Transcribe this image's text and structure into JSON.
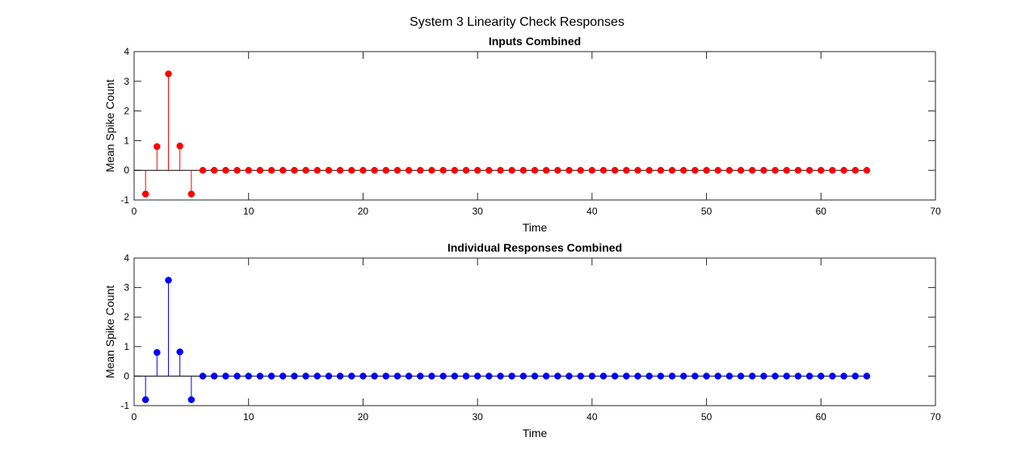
{
  "figure": {
    "suptitle": "System 3 Linearity Check Responses"
  },
  "chart_data": [
    {
      "type": "stem",
      "title": "Inputs Combined",
      "xlabel": "Time",
      "ylabel": "Mean Spike Count",
      "xlim": [
        0,
        70
      ],
      "ylim": [
        -1,
        4
      ],
      "xticks": [
        0,
        10,
        20,
        30,
        40,
        50,
        60,
        70
      ],
      "yticks": [
        -1,
        0,
        1,
        2,
        3,
        4
      ],
      "color": "#ff0000",
      "x": [
        1,
        2,
        3,
        4,
        5,
        6,
        7,
        8,
        9,
        10,
        11,
        12,
        13,
        14,
        15,
        16,
        17,
        18,
        19,
        20,
        21,
        22,
        23,
        24,
        25,
        26,
        27,
        28,
        29,
        30,
        31,
        32,
        33,
        34,
        35,
        36,
        37,
        38,
        39,
        40,
        41,
        42,
        43,
        44,
        45,
        46,
        47,
        48,
        49,
        50,
        51,
        52,
        53,
        54,
        55,
        56,
        57,
        58,
        59,
        60,
        61,
        62,
        63,
        64
      ],
      "y": [
        -0.8,
        0.8,
        3.25,
        0.82,
        -0.8,
        0,
        0,
        0,
        0,
        0,
        0,
        0,
        0,
        0,
        0,
        0,
        0,
        0,
        0,
        0,
        0,
        0,
        0,
        0,
        0,
        0,
        0,
        0,
        0,
        0,
        0,
        0,
        0,
        0,
        0,
        0,
        0,
        0,
        0,
        0,
        0,
        0,
        0,
        0,
        0,
        0,
        0,
        0,
        0,
        0,
        0,
        0,
        0,
        0,
        0,
        0,
        0,
        0,
        0,
        0,
        0,
        0,
        0,
        0
      ],
      "grid": false
    },
    {
      "type": "stem",
      "title": "Individual Responses Combined",
      "xlabel": "Time",
      "ylabel": "Mean Spike Count",
      "xlim": [
        0,
        70
      ],
      "ylim": [
        -1,
        4
      ],
      "xticks": [
        0,
        10,
        20,
        30,
        40,
        50,
        60,
        70
      ],
      "yticks": [
        -1,
        0,
        1,
        2,
        3,
        4
      ],
      "color": "#0000ff",
      "x": [
        1,
        2,
        3,
        4,
        5,
        6,
        7,
        8,
        9,
        10,
        11,
        12,
        13,
        14,
        15,
        16,
        17,
        18,
        19,
        20,
        21,
        22,
        23,
        24,
        25,
        26,
        27,
        28,
        29,
        30,
        31,
        32,
        33,
        34,
        35,
        36,
        37,
        38,
        39,
        40,
        41,
        42,
        43,
        44,
        45,
        46,
        47,
        48,
        49,
        50,
        51,
        52,
        53,
        54,
        55,
        56,
        57,
        58,
        59,
        60,
        61,
        62,
        63,
        64
      ],
      "y": [
        -0.8,
        0.8,
        3.25,
        0.82,
        -0.8,
        0,
        0,
        0,
        0,
        0,
        0,
        0,
        0,
        0,
        0,
        0,
        0,
        0,
        0,
        0,
        0,
        0,
        0,
        0,
        0,
        0,
        0,
        0,
        0,
        0,
        0,
        0,
        0,
        0,
        0,
        0,
        0,
        0,
        0,
        0,
        0,
        0,
        0,
        0,
        0,
        0,
        0,
        0,
        0,
        0,
        0,
        0,
        0,
        0,
        0,
        0,
        0,
        0,
        0,
        0,
        0,
        0,
        0,
        0
      ],
      "grid": false
    }
  ]
}
